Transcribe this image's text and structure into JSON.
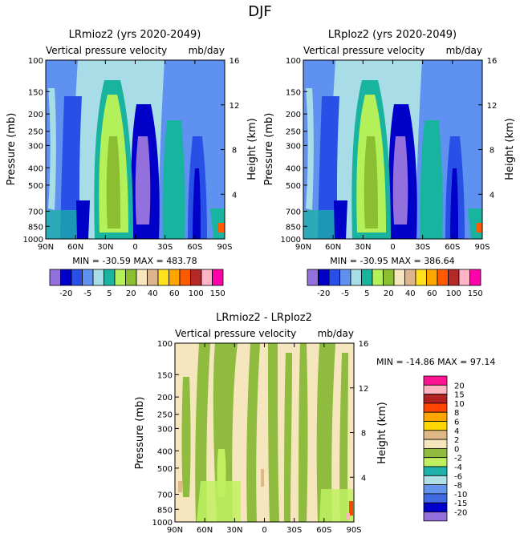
{
  "figure": {
    "title": "DJF"
  },
  "chart_data": [
    {
      "type": "heatmap",
      "title": "LRmioz2 (yrs 2020-2049)",
      "subtitle_left": "Vertical pressure velocity",
      "subtitle_right": "mb/day",
      "ylabel": "Pressure (mb)",
      "ylabel_right": "Height (km)",
      "x_ticks": [
        "90N",
        "60N",
        "30N",
        "0",
        "30S",
        "60S",
        "90S"
      ],
      "y_ticks": [
        "100",
        "150",
        "200",
        "250",
        "300",
        "400",
        "500",
        "700",
        "850",
        "1000"
      ],
      "y_right_ticks": [
        "4",
        "8",
        "12",
        "16"
      ],
      "stats": "MIN = -30.59   MAX = 483.78",
      "colorbar_labels": [
        "-20",
        "-5",
        "5",
        "20",
        "40",
        "60",
        "100",
        "150"
      ]
    },
    {
      "type": "heatmap",
      "title": "LRploz2 (yrs 2020-2049)",
      "subtitle_left": "Vertical pressure velocity",
      "subtitle_right": "mb/day",
      "ylabel": "Pressure (mb)",
      "ylabel_right": "Height (km)",
      "x_ticks": [
        "90N",
        "60N",
        "30N",
        "0",
        "30S",
        "60S",
        "90S"
      ],
      "y_ticks": [
        "100",
        "150",
        "200",
        "250",
        "300",
        "400",
        "500",
        "700",
        "850",
        "1000"
      ],
      "y_right_ticks": [
        "4",
        "8",
        "12",
        "16"
      ],
      "stats": "MIN = -30.95   MAX = 386.64",
      "colorbar_labels": [
        "-20",
        "-5",
        "5",
        "20",
        "40",
        "60",
        "100",
        "150"
      ]
    },
    {
      "type": "heatmap",
      "title": "LRmioz2 - LRploz2",
      "subtitle_left": "Vertical pressure velocity",
      "subtitle_right": "mb/day",
      "ylabel": "Pressure (mb)",
      "ylabel_right": "Height (km)",
      "x_ticks": [
        "90N",
        "60N",
        "30N",
        "0",
        "30S",
        "60S",
        "90S"
      ],
      "y_ticks": [
        "100",
        "150",
        "200",
        "250",
        "300",
        "400",
        "500",
        "700",
        "850",
        "1000"
      ],
      "y_right_ticks": [
        "4",
        "8",
        "12",
        "16"
      ],
      "stats": "MIN = -14.86   MAX =  97.14",
      "colorbar_labels": [
        "20",
        "15",
        "10",
        "8",
        "6",
        "4",
        "2",
        "0",
        "-2",
        "-4",
        "-6",
        "-8",
        "-10",
        "-15",
        "-20"
      ]
    }
  ],
  "colors": {
    "abs_levels": [
      "#9370db",
      "#0000c8",
      "#2850e6",
      "#5f91f0",
      "#a8dce6",
      "#19b4a0",
      "#b4f05a",
      "#8cbe32",
      "#f5e6be",
      "#deb48c",
      "#ffe11e",
      "#ffa500",
      "#ff5a00",
      "#b42828",
      "#ffb4c8",
      "#ff00aa"
    ],
    "diff_levels": [
      "#ff1493",
      "#ffb6c1",
      "#b22222",
      "#ff4500",
      "#ffa500",
      "#ffd700",
      "#deb887",
      "#f5e6be",
      "#8fbc3f",
      "#c0f060",
      "#20b2aa",
      "#b0e0e6",
      "#6495ed",
      "#4169e1",
      "#0000cd",
      "#9370db"
    ]
  }
}
